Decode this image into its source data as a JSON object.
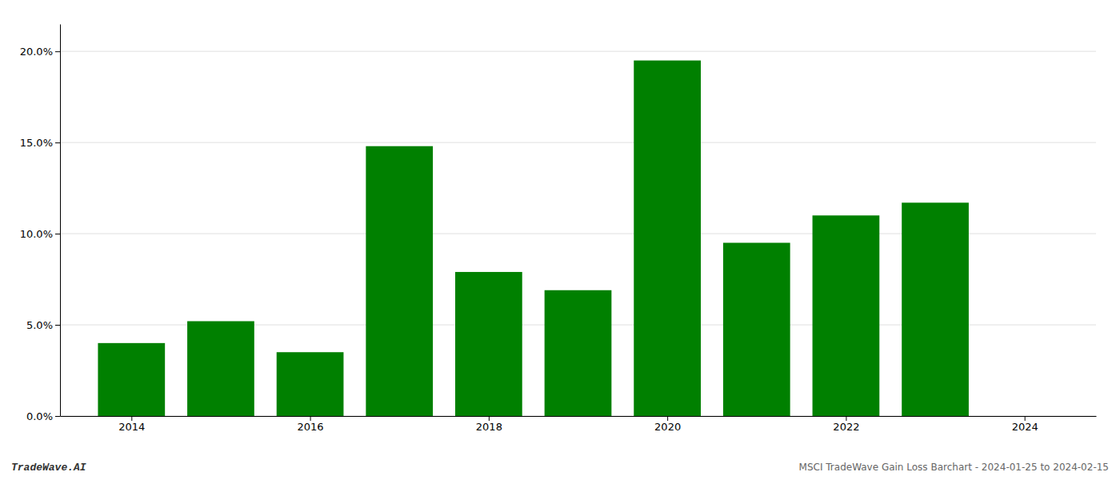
{
  "chart_data": {
    "type": "bar",
    "x": [
      2014,
      2015,
      2016,
      2017,
      2018,
      2019,
      2020,
      2021,
      2022,
      2023
    ],
    "values": [
      0.04,
      0.052,
      0.035,
      0.148,
      0.079,
      0.069,
      0.195,
      0.095,
      0.11,
      0.117
    ],
    "color": "#008000",
    "xlim": [
      2013.2,
      2024.8
    ],
    "xticks": [
      2014,
      2016,
      2018,
      2020,
      2022,
      2024
    ],
    "ylim": [
      0,
      0.215
    ],
    "yticks": [
      {
        "value": 0.0,
        "label": "0.0%"
      },
      {
        "value": 0.05,
        "label": "5.0%"
      },
      {
        "value": 0.1,
        "label": "10.0%"
      },
      {
        "value": 0.15,
        "label": "15.0%"
      },
      {
        "value": 0.2,
        "label": "20.0%"
      }
    ],
    "grid": true,
    "annotations": [
      "TradeWave.AI",
      "MSCI TradeWave Gain Loss Barchart - 2024-01-25 to 2024-02-15"
    ]
  }
}
